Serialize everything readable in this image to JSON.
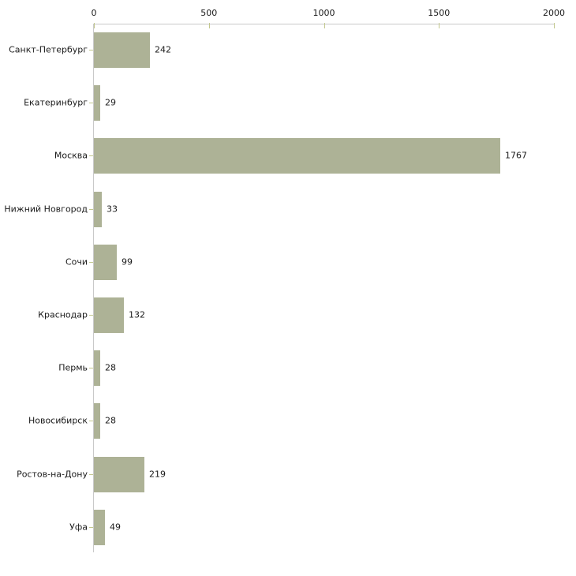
{
  "chart_data": {
    "type": "bar",
    "orientation": "horizontal",
    "title": "",
    "xlabel": "",
    "ylabel": "",
    "categories": [
      "Санкт-Петербург",
      "Екатеринбург",
      "Москва",
      "Нижний Новгород",
      "Сочи",
      "Краснодар",
      "Пермь",
      "Новосибирск",
      "Ростов-на-Дону",
      "Уфа"
    ],
    "values": [
      242,
      29,
      1767,
      33,
      99,
      132,
      28,
      28,
      219,
      49
    ],
    "value_labels": [
      "242",
      "29",
      "1767",
      "33",
      "99",
      "132",
      "28",
      "28",
      "219",
      "49"
    ],
    "x_axis": {
      "position": "top",
      "min": 0,
      "max": 2000,
      "ticks": [
        0,
        500,
        1000,
        1500,
        2000
      ],
      "tick_labels": [
        "0",
        "500",
        "1000",
        "1500",
        "2000"
      ]
    },
    "grid": false,
    "legend": false,
    "colors": {
      "bar": "#adb296",
      "axis_line": "#c9c9c9",
      "tick_mark": "#c2c78d",
      "text": "#1a1a1a"
    }
  }
}
